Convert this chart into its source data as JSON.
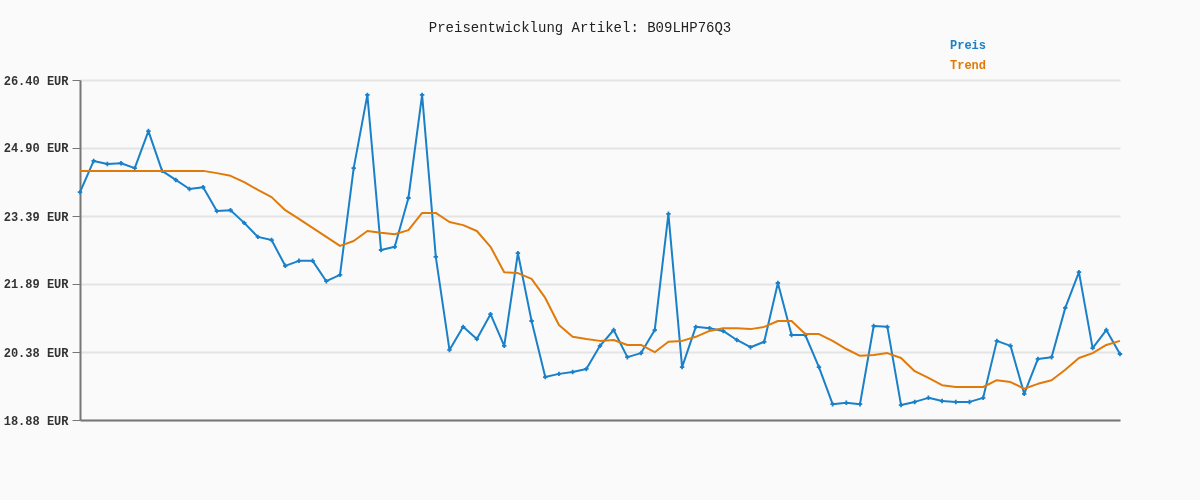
{
  "chart_data": {
    "type": "line",
    "title": "Preisentwicklung Artikel: B09LHP76Q3",
    "categories": [
      null,
      null,
      null,
      null,
      null,
      null,
      null,
      null,
      null,
      null,
      null,
      null,
      null,
      null,
      null,
      null,
      null,
      null,
      null,
      null,
      null,
      null,
      null,
      null,
      null,
      null,
      null,
      null,
      null,
      null,
      null,
      null,
      null,
      null,
      null,
      null,
      null,
      null,
      null,
      null,
      null,
      null,
      null,
      null,
      null,
      null,
      null,
      null,
      null,
      null,
      null,
      null,
      null,
      null,
      null,
      null,
      null,
      null,
      null,
      null,
      null,
      null,
      null,
      null,
      null,
      null,
      null,
      null,
      null,
      null,
      null,
      null,
      null,
      null,
      null,
      null,
      null
    ],
    "series": [
      {
        "name": "Preis",
        "color": "#1a80c8",
        "marker": "cross",
        "values": [
          23.92,
          24.61,
          24.54,
          24.56,
          24.45,
          25.27,
          24.39,
          24.19,
          23.99,
          24.03,
          23.5,
          23.52,
          23.24,
          22.93,
          22.86,
          22.29,
          22.4,
          22.4,
          21.95,
          22.09,
          24.45,
          26.07,
          22.64,
          22.71,
          23.79,
          26.07,
          22.49,
          20.43,
          20.94,
          20.67,
          21.22,
          20.52,
          22.57,
          21.07,
          19.83,
          19.9,
          19.94,
          20.01,
          20.52,
          20.87,
          20.27,
          20.36,
          20.87,
          23.44,
          20.05,
          20.94,
          20.91,
          20.85,
          20.65,
          20.49,
          20.61,
          21.91,
          20.76,
          20.76,
          20.05,
          19.23,
          19.26,
          19.23,
          20.96,
          20.94,
          19.21,
          19.28,
          19.37,
          19.3,
          19.28,
          19.28,
          19.37,
          20.63,
          20.52,
          19.46,
          20.23,
          20.27,
          21.36,
          22.15,
          20.47,
          20.87,
          20.34
        ]
      },
      {
        "name": "Trend",
        "color": "#e07b0a",
        "marker": "none",
        "values": [
          24.39,
          24.39,
          24.39,
          24.39,
          24.39,
          24.39,
          24.39,
          24.39,
          24.39,
          24.39,
          24.34,
          24.28,
          24.14,
          23.97,
          23.81,
          23.52,
          23.33,
          23.13,
          22.93,
          22.73,
          22.84,
          23.06,
          23.02,
          22.99,
          23.08,
          23.46,
          23.46,
          23.26,
          23.19,
          23.06,
          22.71,
          22.15,
          22.13,
          22.0,
          21.58,
          20.98,
          20.72,
          20.67,
          20.63,
          20.65,
          20.54,
          20.54,
          20.38,
          20.61,
          20.63,
          20.72,
          20.85,
          20.91,
          20.91,
          20.89,
          20.94,
          21.07,
          21.07,
          20.78,
          20.78,
          20.63,
          20.45,
          20.3,
          20.32,
          20.36,
          20.25,
          19.96,
          19.81,
          19.65,
          19.61,
          19.61,
          19.61,
          19.76,
          19.72,
          19.57,
          19.68,
          19.76,
          19.99,
          20.25,
          20.36,
          20.54,
          20.63
        ]
      }
    ],
    "ylim": [
      18.88,
      26.4
    ],
    "yticks": [
      {
        "value": 18.88,
        "label": "18.88 EUR"
      },
      {
        "value": 20.38,
        "label": "20.38 EUR"
      },
      {
        "value": 21.89,
        "label": "21.89 EUR"
      },
      {
        "value": 23.39,
        "label": "23.39 EUR"
      },
      {
        "value": 24.9,
        "label": "24.90 EUR"
      },
      {
        "value": 26.4,
        "label": "26.40 EUR"
      }
    ],
    "grid": "y",
    "legend": "top right",
    "tick_labels": "y",
    "line_style": "solid"
  }
}
